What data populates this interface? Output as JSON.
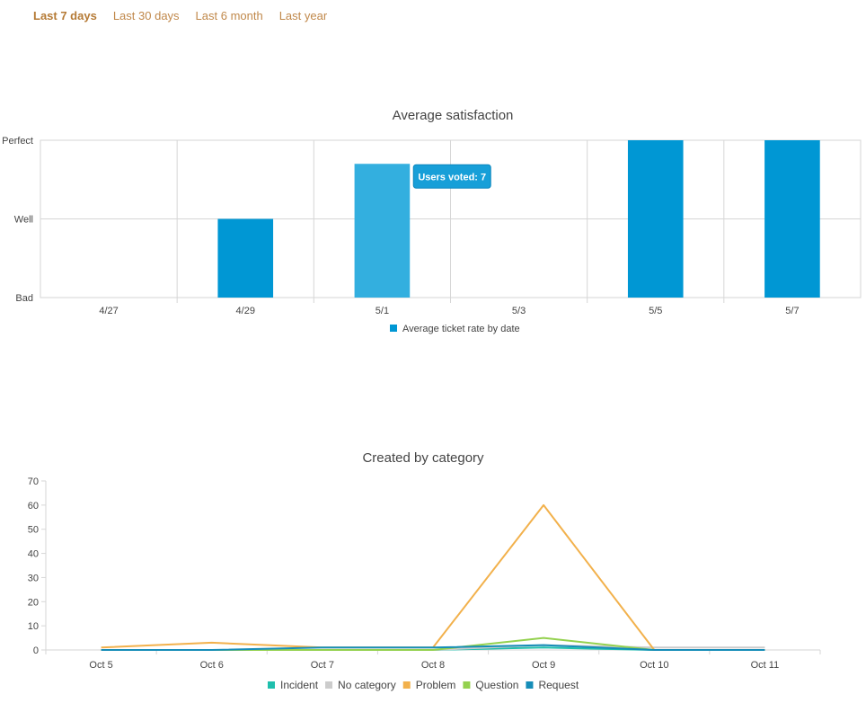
{
  "tabs": [
    {
      "label": "Last 7 days",
      "active": true
    },
    {
      "label": "Last 30 days",
      "active": false
    },
    {
      "label": "Last 6 month",
      "active": false
    },
    {
      "label": "Last year",
      "active": false
    }
  ],
  "chart_data": [
    {
      "type": "bar",
      "title": "Average satisfaction",
      "categories": [
        "4/27",
        "4/29",
        "5/1",
        "5/3",
        "5/5",
        "5/7"
      ],
      "y_levels": [
        "Bad",
        "Well",
        "Perfect"
      ],
      "ylim": [
        0,
        2
      ],
      "series": [
        {
          "name": "Average ticket rate by date",
          "color": "#0097d4",
          "values": [
            0,
            1,
            1.7,
            0,
            2,
            2
          ]
        }
      ],
      "highlight": {
        "category": "5/1",
        "color": "#33afdf"
      },
      "tooltip": {
        "category": "5/1",
        "text": "Users voted: 7"
      },
      "grid": true,
      "legend": "bottom-center"
    },
    {
      "type": "line",
      "title": "Created by category",
      "categories": [
        "Oct 5",
        "Oct 6",
        "Oct 7",
        "Oct 8",
        "Oct 9",
        "Oct 10",
        "Oct 11"
      ],
      "yticks": [
        0,
        10,
        20,
        30,
        40,
        50,
        60,
        70
      ],
      "ylim": [
        0,
        70
      ],
      "series": [
        {
          "name": "Incident",
          "color": "#1fbfad",
          "values": [
            0,
            0,
            0,
            0,
            1,
            0,
            0
          ]
        },
        {
          "name": "No category",
          "color": "#cccccc",
          "values": [
            0,
            0,
            0,
            0,
            2,
            1,
            1
          ]
        },
        {
          "name": "Problem",
          "color": "#f2b14c",
          "values": [
            1,
            3,
            1,
            1,
            60,
            0,
            0
          ]
        },
        {
          "name": "Question",
          "color": "#94d14f",
          "values": [
            0,
            0,
            0,
            0,
            5,
            0,
            0
          ]
        },
        {
          "name": "Request",
          "color": "#168db8",
          "values": [
            0,
            0,
            1,
            1,
            2,
            0,
            0
          ]
        }
      ],
      "grid": false,
      "legend": "bottom-center"
    }
  ]
}
